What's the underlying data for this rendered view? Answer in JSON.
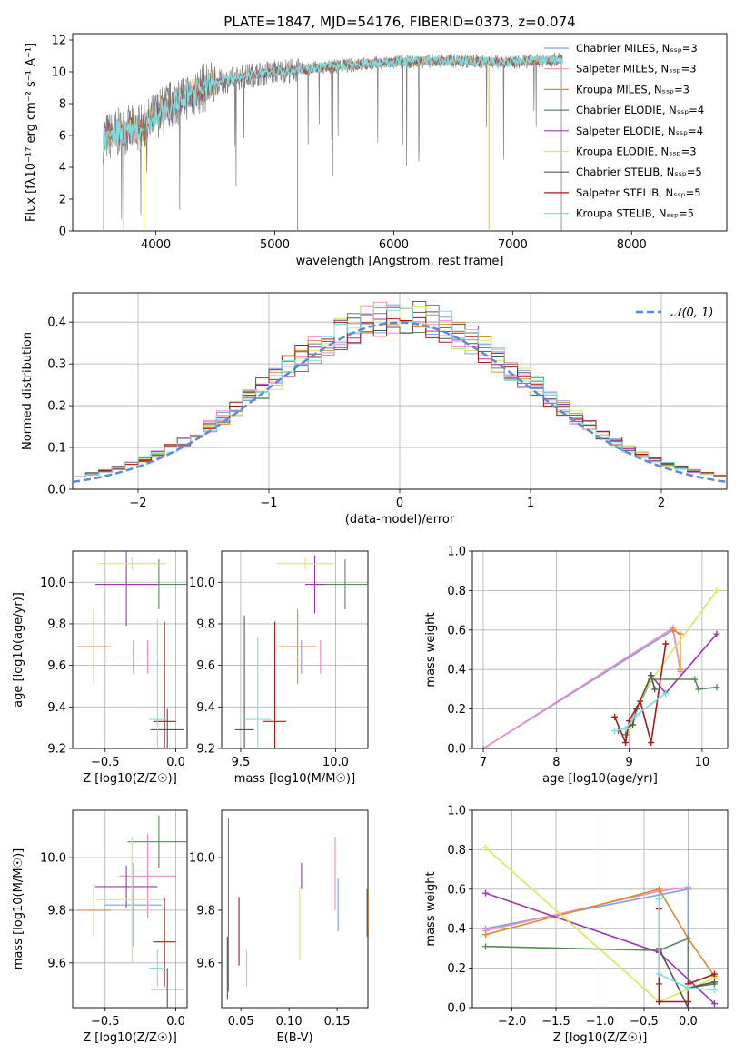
{
  "title": "PLATE=1847, MJD=54176, FIBERID=0373, z=0.074",
  "colors": {
    "chabrier_miles": "#7da0e0",
    "salpeter_miles": "#f08cc8",
    "kroupa_miles": "#e08a30",
    "chabrier_elodie": "#5a8a5a",
    "salpeter_elodie": "#9a3aaa",
    "kroupa_elodie": "#d8e85a",
    "chabrier_stelib": "#555555",
    "salpeter_stelib": "#aa1a1a",
    "kroupa_stelib": "#80dde0",
    "data": "#808080",
    "normal": "#5b8bd6"
  },
  "chart_data": [
    {
      "type": "line",
      "xlabel": "wavelength [Angstrom, rest frame]",
      "ylabel": "Flux [fλ10⁻¹⁷ erg cm⁻² s⁻¹ A⁻¹]",
      "xlim": [
        3300,
        8800
      ],
      "ylim": [
        0,
        12.4
      ],
      "xticks": [
        4000,
        5000,
        6000,
        7000,
        8000
      ],
      "yticks": [
        0,
        2,
        4,
        6,
        8,
        10,
        12
      ],
      "legend_position": "right",
      "legend": [
        "Chabrier MILES, N_SSP=3",
        "Salpeter MILES, N_SSP=3",
        "Kroupa MILES, N_SSP=3",
        "Chabrier ELODIE, N_SSP=4",
        "Salpeter ELODIE, N_SSP=4",
        "Kroupa ELODIE, N_SSP=3",
        "Chabrier STELIB, N_SSP=5",
        "Salpeter STELIB, N_SSP=5",
        "Kroupa STELIB, N_SSP=5"
      ],
      "continuum": {
        "x": [
          3550,
          3700,
          3900,
          4000,
          4200,
          4500,
          4800,
          5000,
          5300,
          5600,
          6000,
          6500,
          7000,
          7400
        ],
        "y": [
          5.8,
          6.2,
          6.5,
          7.3,
          8.3,
          9.3,
          9.8,
          10.0,
          10.2,
          10.4,
          10.6,
          10.7,
          10.6,
          10.8
        ]
      }
    },
    {
      "type": "bar",
      "xlabel": "(data-model)/error",
      "ylabel": "Normed distribution",
      "xlim": [
        -2.5,
        2.5
      ],
      "ylim": [
        0,
        0.47
      ],
      "xticks": [
        -2,
        -1,
        0,
        1,
        2
      ],
      "yticks": [
        0.0,
        0.1,
        0.2,
        0.3,
        0.4
      ],
      "grid": true,
      "legend": [
        "𝒩(0, 1)"
      ],
      "legend_position": "top-right",
      "bin_width": 0.1
    },
    {
      "type": "scatter",
      "xlabel": "Z [log10(Z/Z☉)]",
      "ylabel": "age  [log10(age/yr)]",
      "xlim": [
        -0.73,
        0.08
      ],
      "ylim": [
        9.2,
        10.15
      ],
      "xticks": [
        -0.5,
        0.0
      ],
      "yticks": [
        9.2,
        9.4,
        9.6,
        9.8,
        10.0
      ],
      "grid": true,
      "points": [
        {
          "x": -0.3,
          "y": 9.64,
          "xerr": 0.2,
          "yerr": 0.08,
          "c": "chabrier_miles"
        },
        {
          "x": -0.2,
          "y": 9.64,
          "xerr": 0.2,
          "yerr": 0.08,
          "c": "salpeter_miles"
        },
        {
          "x": -0.58,
          "y": 9.69,
          "xerr": 0.12,
          "yerr": 0.18,
          "c": "kroupa_miles"
        },
        {
          "x": -0.12,
          "y": 9.99,
          "xerr": 0.22,
          "yerr": 0.12,
          "c": "chabrier_elodie"
        },
        {
          "x": -0.35,
          "y": 9.99,
          "xerr": 0.22,
          "yerr": 0.2,
          "c": "salpeter_elodie"
        },
        {
          "x": -0.31,
          "y": 10.09,
          "xerr": 0.24,
          "yerr": 0.03,
          "c": "kroupa_elodie"
        },
        {
          "x": -0.06,
          "y": 9.29,
          "xerr": 0.12,
          "yerr": 0.1,
          "c": "chabrier_stelib"
        },
        {
          "x": -0.08,
          "y": 9.33,
          "xerr": 0.08,
          "yerr": 0.48,
          "c": "salpeter_stelib"
        },
        {
          "x": -0.13,
          "y": 9.34,
          "xerr": 0.06,
          "yerr": 0.48,
          "c": "kroupa_stelib"
        }
      ]
    },
    {
      "type": "scatter",
      "xlabel": "mass [log10(M/M☉)]",
      "ylabel": "",
      "xlim": [
        9.4,
        10.17
      ],
      "ylim": [
        9.2,
        10.15
      ],
      "xticks": [
        9.5,
        10.0
      ],
      "yticks": [
        9.2,
        9.4,
        9.6,
        9.8,
        10.0
      ],
      "grid": true,
      "points": [
        {
          "x": 9.82,
          "y": 9.64,
          "xerr": 0.16,
          "yerr": 0.08,
          "c": "chabrier_miles"
        },
        {
          "x": 9.92,
          "y": 9.64,
          "xerr": 0.16,
          "yerr": 0.08,
          "c": "salpeter_miles"
        },
        {
          "x": 9.8,
          "y": 9.69,
          "xerr": 0.1,
          "yerr": 0.18,
          "c": "kroupa_miles"
        },
        {
          "x": 10.05,
          "y": 9.99,
          "xerr": 0.14,
          "yerr": 0.12,
          "c": "chabrier_elodie"
        },
        {
          "x": 9.89,
          "y": 9.99,
          "xerr": 0.05,
          "yerr": 0.14,
          "c": "salpeter_elodie"
        },
        {
          "x": 9.84,
          "y": 10.09,
          "xerr": 0.15,
          "yerr": 0.03,
          "c": "kroupa_elodie"
        },
        {
          "x": 9.52,
          "y": 9.29,
          "xerr": 0.05,
          "yerr": 0.55,
          "c": "chabrier_stelib"
        },
        {
          "x": 9.68,
          "y": 9.33,
          "xerr": 0.06,
          "yerr": 0.48,
          "c": "salpeter_stelib"
        },
        {
          "x": 9.59,
          "y": 9.34,
          "xerr": 0.07,
          "yerr": 0.4,
          "c": "kroupa_stelib"
        }
      ]
    },
    {
      "type": "line",
      "xlabel": "age  [log10(age/yr)]",
      "ylabel": "mass weight",
      "xlim": [
        6.85,
        10.35
      ],
      "ylim": [
        0,
        1.0
      ],
      "xticks": [
        7,
        8,
        9,
        10
      ],
      "yticks": [
        0.0,
        0.2,
        0.4,
        0.6,
        0.8,
        1.0
      ],
      "grid": true,
      "series": [
        {
          "c": "chabrier_miles",
          "x": [
            7.0,
            9.6,
            9.7
          ],
          "y": [
            0.0,
            0.6,
            0.4
          ]
        },
        {
          "c": "salpeter_miles",
          "x": [
            7.0,
            9.6,
            9.7
          ],
          "y": [
            0.0,
            0.61,
            0.39
          ]
        },
        {
          "c": "kroupa_miles",
          "x": [
            9.6,
            9.7,
            9.7
          ],
          "y": [
            0.6,
            0.58,
            0.4
          ]
        },
        {
          "c": "chabrier_elodie",
          "x": [
            8.95,
            9.3,
            9.9,
            9.95,
            10.2
          ],
          "y": [
            0.07,
            0.35,
            0.35,
            0.3,
            0.31
          ]
        },
        {
          "c": "salpeter_elodie",
          "x": [
            9.3,
            9.5,
            10.2
          ],
          "y": [
            0.37,
            0.28,
            0.58
          ]
        },
        {
          "c": "kroupa_elodie",
          "x": [
            9.0,
            9.25,
            10.2
          ],
          "y": [
            0.1,
            0.32,
            0.8
          ]
        },
        {
          "c": "chabrier_stelib",
          "x": [
            8.85,
            9.05,
            9.1,
            9.3,
            9.35
          ],
          "y": [
            0.09,
            0.12,
            0.2,
            0.37,
            0.3
          ]
        },
        {
          "c": "salpeter_stelib",
          "x": [
            8.8,
            8.95,
            9.0,
            9.15,
            9.3,
            9.5
          ],
          "y": [
            0.16,
            0.03,
            0.14,
            0.24,
            0.03,
            0.53
          ]
        },
        {
          "c": "kroupa_stelib",
          "x": [
            8.8,
            8.95,
            9.1,
            9.5
          ],
          "y": [
            0.09,
            0.1,
            0.17,
            0.28
          ]
        }
      ]
    },
    {
      "type": "scatter",
      "xlabel": "Z [log10(Z/Z☉)]",
      "ylabel": "mass [log10(M/M☉)]",
      "xlim": [
        -0.73,
        0.08
      ],
      "ylim": [
        9.43,
        10.18
      ],
      "xticks": [
        -0.5,
        0.0
      ],
      "yticks": [
        9.6,
        9.8,
        10.0
      ],
      "grid": true,
      "points": [
        {
          "x": -0.3,
          "y": 9.82,
          "xerr": 0.2,
          "yerr": 0.16,
          "c": "chabrier_miles"
        },
        {
          "x": -0.2,
          "y": 9.93,
          "xerr": 0.2,
          "yerr": 0.16,
          "c": "salpeter_miles"
        },
        {
          "x": -0.58,
          "y": 9.8,
          "xerr": 0.12,
          "yerr": 0.1,
          "c": "kroupa_miles"
        },
        {
          "x": -0.12,
          "y": 10.06,
          "xerr": 0.22,
          "yerr": 0.1,
          "c": "chabrier_elodie"
        },
        {
          "x": -0.35,
          "y": 9.89,
          "xerr": 0.22,
          "yerr": 0.08,
          "c": "salpeter_elodie"
        },
        {
          "x": -0.31,
          "y": 9.84,
          "xerr": 0.24,
          "yerr": 0.24,
          "c": "kroupa_elodie"
        },
        {
          "x": -0.06,
          "y": 9.5,
          "xerr": 0.12,
          "yerr": 0.08,
          "c": "chabrier_stelib"
        },
        {
          "x": -0.08,
          "y": 9.68,
          "xerr": 0.08,
          "yerr": 0.17,
          "c": "salpeter_stelib"
        },
        {
          "x": -0.13,
          "y": 9.58,
          "xerr": 0.06,
          "yerr": 0.07,
          "c": "kroupa_stelib"
        }
      ]
    },
    {
      "type": "scatter",
      "xlabel": "E(B-V)",
      "ylabel": "",
      "xlim": [
        0.03,
        0.182
      ],
      "ylim": [
        9.43,
        10.18
      ],
      "xticks": [
        0.05,
        0.1,
        0.15
      ],
      "yticks": [
        9.6,
        9.8,
        10.0
      ],
      "grid": false,
      "points": [
        {
          "x": 0.151,
          "y": 9.82,
          "yerr": 0.1,
          "c": "chabrier_miles"
        },
        {
          "x": 0.148,
          "y": 9.94,
          "yerr": 0.14,
          "c": "salpeter_miles"
        },
        {
          "x": 0.181,
          "y": 9.79,
          "yerr": 0.09,
          "c": "kroupa_miles"
        },
        {
          "x": 0.037,
          "y": 9.82,
          "yerr": 0.33,
          "c": "chabrier_elodie"
        },
        {
          "x": 0.113,
          "y": 9.93,
          "yerr": 0.05,
          "c": "salpeter_elodie"
        },
        {
          "x": 0.111,
          "y": 9.75,
          "yerr": 0.14,
          "c": "kroupa_elodie"
        },
        {
          "x": 0.036,
          "y": 9.58,
          "yerr": 0.12,
          "c": "chabrier_stelib"
        },
        {
          "x": 0.048,
          "y": 9.72,
          "yerr": 0.13,
          "c": "salpeter_stelib"
        },
        {
          "x": 0.056,
          "y": 9.58,
          "yerr": 0.07,
          "c": "kroupa_stelib"
        }
      ]
    },
    {
      "type": "line",
      "xlabel": "Z [log10(Z/Z☉)]",
      "ylabel": "mass weight",
      "xlim": [
        -2.45,
        0.45
      ],
      "ylim": [
        0,
        1.0
      ],
      "xticks": [
        -2.0,
        -1.5,
        -1.0,
        -0.5,
        0.0
      ],
      "yticks": [
        0.0,
        0.2,
        0.4,
        0.6,
        0.8,
        1.0
      ],
      "grid": true,
      "series": [
        {
          "c": "chabrier_miles",
          "x": [
            -2.3,
            0.0,
            0.0
          ],
          "y": [
            0.4,
            0.6,
            0.1
          ]
        },
        {
          "c": "salpeter_miles",
          "x": [
            -2.3,
            -0.33,
            0.0
          ],
          "y": [
            0.39,
            0.59,
            0.61
          ]
        },
        {
          "c": "kroupa_miles",
          "x": [
            -2.3,
            -0.33,
            0.0,
            0.3
          ],
          "y": [
            0.37,
            0.6,
            0.35,
            0.16
          ]
        },
        {
          "c": "chabrier_elodie",
          "x": [
            -2.3,
            -0.33,
            0.0,
            0.0,
            0.3
          ],
          "y": [
            0.31,
            0.29,
            0.35,
            0.1,
            0.12
          ]
        },
        {
          "c": "salpeter_elodie",
          "x": [
            -2.3,
            -0.33,
            0.3
          ],
          "y": [
            0.58,
            0.28,
            0.02
          ]
        },
        {
          "c": "kroupa_elodie",
          "x": [
            -2.3,
            -0.33,
            0.3
          ],
          "y": [
            0.81,
            0.03,
            0.15
          ]
        },
        {
          "c": "chabrier_stelib",
          "x": [
            -0.33,
            -0.33,
            0.0,
            0.0,
            0.3
          ],
          "y": [
            0.12,
            0.3,
            0.0,
            0.1,
            0.13
          ]
        },
        {
          "c": "salpeter_stelib",
          "x": [
            -0.33,
            -0.33,
            0.0,
            0.0,
            0.3
          ],
          "y": [
            0.5,
            0.03,
            0.03,
            0.12,
            0.17
          ]
        },
        {
          "c": "kroupa_stelib",
          "x": [
            -0.33,
            -0.33,
            0.0,
            0.3
          ],
          "y": [
            0.55,
            0.17,
            0.1,
            0.09
          ]
        }
      ]
    }
  ]
}
